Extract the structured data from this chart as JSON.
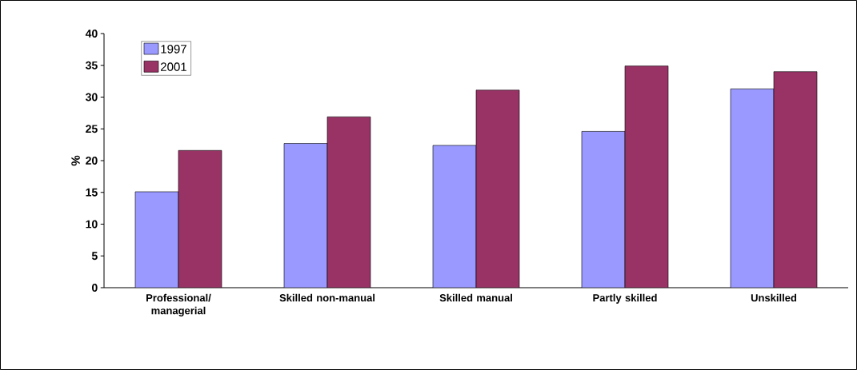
{
  "chart_data": {
    "type": "bar",
    "ylabel": "%",
    "categories": [
      "Professional/ managerial",
      "Skilled non-manual",
      "Skilled manual",
      "Partly skilled",
      "Unskilled"
    ],
    "series": [
      {
        "name": "1997",
        "color": "#9999ff",
        "values": [
          15.1,
          22.7,
          22.4,
          24.6,
          31.3
        ]
      },
      {
        "name": "2001",
        "color": "#993366",
        "values": [
          21.6,
          26.9,
          31.1,
          34.9,
          34.0
        ]
      }
    ],
    "ylim": [
      0,
      40
    ],
    "yticks": [
      0,
      5,
      10,
      15,
      20,
      25,
      30,
      35,
      40
    ],
    "grid": false,
    "legend": "top left"
  }
}
